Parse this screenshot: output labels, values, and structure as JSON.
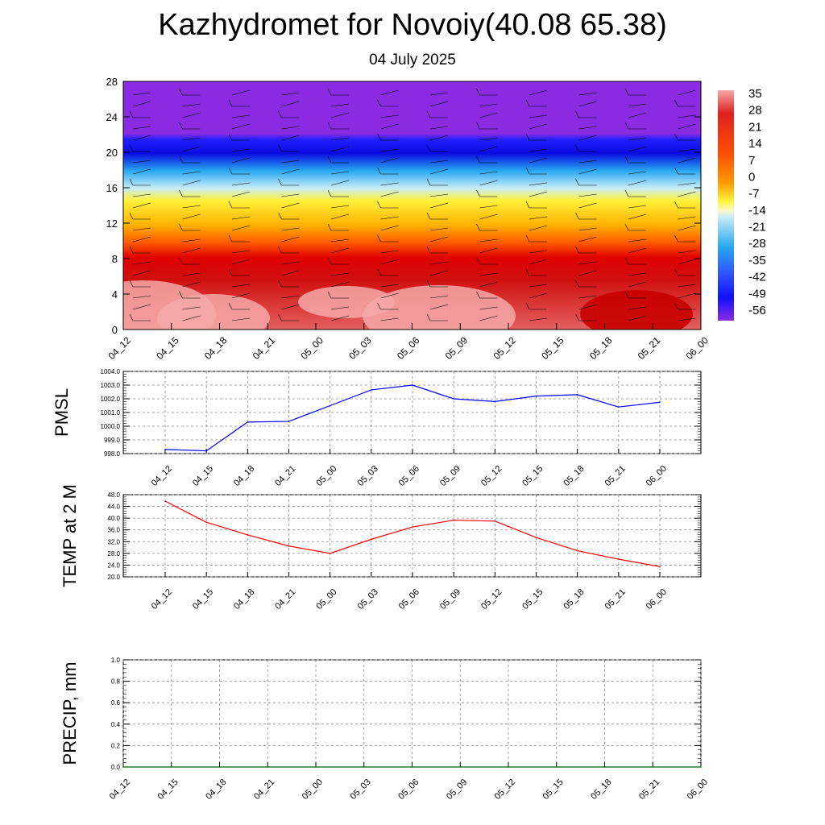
{
  "header": {
    "title": "Kazhydromet for Novoiy(40.08 65.38)",
    "subtitle": "04 July 2025"
  },
  "chart_data": [
    {
      "type": "heatmap",
      "title": "",
      "ylim": [
        0,
        28
      ],
      "y_ticks": [
        "0",
        "4",
        "8",
        "12",
        "16",
        "20",
        "24",
        "28"
      ],
      "x_ticks": [
        "04_12",
        "04_15",
        "04_18",
        "04_21",
        "05_00",
        "05_03",
        "05_06",
        "05_09",
        "05_12",
        "05_15",
        "05_18",
        "05_21",
        "06_00"
      ],
      "colorbar_labels": [
        "35",
        "28",
        "21",
        "14",
        "7",
        "0",
        "-7",
        "-14",
        "-21",
        "-28",
        "-35",
        "-42",
        "-49",
        "-56"
      ],
      "colors": {
        "hot": "#f6a8a8",
        "red": "#d40000",
        "orange": "#ff8a00",
        "yellow": "#fff23a",
        "cyan": "#27b2f0",
        "blue": "#1010ff",
        "purple": "#8a2be2"
      }
    },
    {
      "type": "line",
      "ylabel": "PMSL",
      "ylim": [
        998.0,
        1004.0
      ],
      "y_ticks": [
        "998.0",
        "999.0",
        "1000.0",
        "1001.0",
        "1002.0",
        "1003.0",
        "1004.0"
      ],
      "x_ticks": [
        "04_12",
        "04_15",
        "04_18",
        "04_21",
        "05_00",
        "05_03",
        "05_06",
        "05_09",
        "05_12",
        "05_15",
        "05_18",
        "05_21",
        "06_00"
      ],
      "series": [
        {
          "values": [
            998.3,
            998.2,
            1000.3,
            1000.35,
            1001.5,
            1002.65,
            1003.0,
            1002.0,
            1001.8,
            1002.2,
            1002.3,
            1001.4,
            1001.75
          ],
          "color": "#0000ff"
        }
      ]
    },
    {
      "type": "line",
      "ylabel": "TEMP at 2 M",
      "ylim": [
        20.0,
        48.0
      ],
      "y_ticks": [
        "20.0",
        "24.0",
        "28.0",
        "32.0",
        "36.0",
        "40.0",
        "44.0",
        "48.0"
      ],
      "x_ticks": [
        "04_12",
        "04_15",
        "04_18",
        "04_21",
        "05_00",
        "05_03",
        "05_06",
        "05_09",
        "05_12",
        "05_15",
        "05_18",
        "05_21",
        "06_00"
      ],
      "series": [
        {
          "values": [
            45.8,
            38.6,
            34.3,
            30.5,
            28.0,
            32.8,
            37.0,
            39.3,
            39.0,
            33.4,
            28.9,
            26.0,
            23.5
          ],
          "color": "#ff0000"
        }
      ]
    },
    {
      "type": "line",
      "ylabel": "PRECIP, mm",
      "ylim": [
        0.0,
        1.0
      ],
      "y_ticks": [
        "0.0",
        "0.2",
        "0.4",
        "0.6",
        "0.8",
        "1.0"
      ],
      "x_ticks": [
        "04_12",
        "04_15",
        "04_18",
        "04_21",
        "05_00",
        "05_03",
        "05_06",
        "05_09",
        "05_12",
        "05_15",
        "05_18",
        "05_21",
        "06_00"
      ],
      "series": [
        {
          "values": [
            0,
            0,
            0,
            0,
            0,
            0,
            0,
            0,
            0,
            0,
            0,
            0,
            0
          ],
          "color": "#006400"
        }
      ]
    }
  ]
}
